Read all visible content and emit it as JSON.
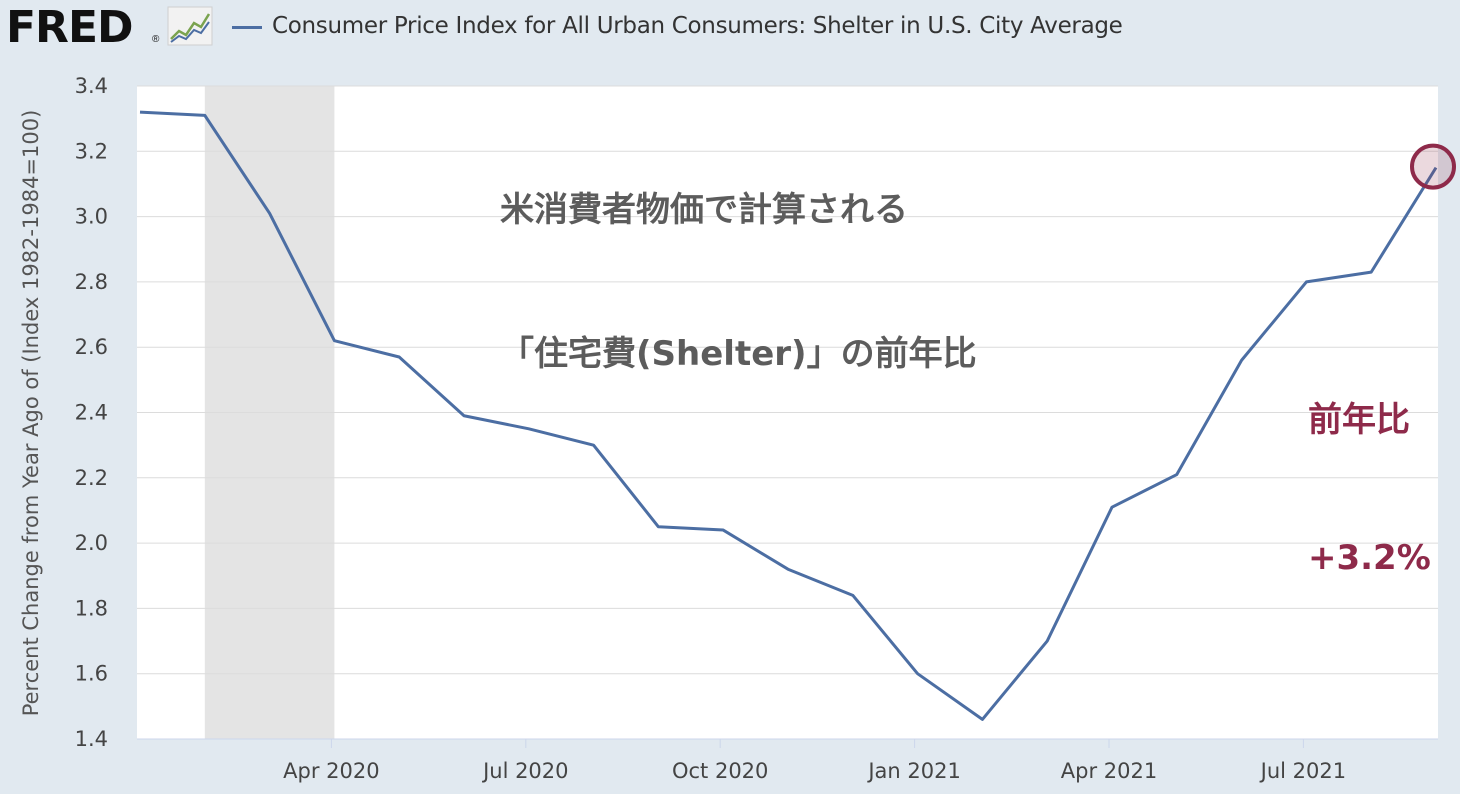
{
  "header": {
    "logo_text": "FRED",
    "logo_registered": "®",
    "logo_icon": "fred-chart-icon",
    "legend_label": "Consumer Price Index for All Urban Consumers: Shelter in U.S. City Average",
    "legend_color": "#4c6ea3"
  },
  "annotations": {
    "title_line1": "米消費者物価で計算される",
    "title_line2": "「住宅費(Shelter)」の前年比",
    "value_line1": "前年比",
    "value_line2": "+3.2%",
    "value_color": "#8e2a4a",
    "title_color": "#5c5c5c"
  },
  "chart_data": {
    "type": "line",
    "ylabel": "Percent Change from Year Ago of (Index 1982-1984=100)",
    "ylim": [
      1.4,
      3.4
    ],
    "yticks": [
      "1.4",
      "1.6",
      "1.8",
      "2.0",
      "2.2",
      "2.4",
      "2.6",
      "2.8",
      "3.0",
      "3.2",
      "3.4"
    ],
    "xticks": [
      "Apr 2020",
      "Jul 2020",
      "Oct 2020",
      "Jan 2021",
      "Apr 2021",
      "Jul 2021"
    ],
    "x": [
      "2020-01",
      "2020-02",
      "2020-03",
      "2020-04",
      "2020-05",
      "2020-06",
      "2020-07",
      "2020-08",
      "2020-09",
      "2020-10",
      "2020-11",
      "2020-12",
      "2021-01",
      "2021-02",
      "2021-03",
      "2021-04",
      "2021-05",
      "2021-06",
      "2021-07",
      "2021-08",
      "2021-09"
    ],
    "series": [
      {
        "values": [
          3.32,
          3.31,
          3.01,
          2.62,
          2.57,
          2.39,
          2.35,
          2.3,
          2.05,
          2.04,
          1.92,
          1.84,
          1.6,
          1.46,
          1.7,
          2.11,
          2.21,
          2.56,
          2.8,
          2.83,
          3.15
        ],
        "color": "#4c6ea3"
      }
    ],
    "recession_shading": {
      "from": "2020-02",
      "to": "2020-04",
      "color": "#e4e4e4"
    },
    "highlight": {
      "x": "2021-09",
      "y": 3.15,
      "color": "#8e2a4a"
    },
    "grid": true,
    "background": "#ffffff"
  }
}
